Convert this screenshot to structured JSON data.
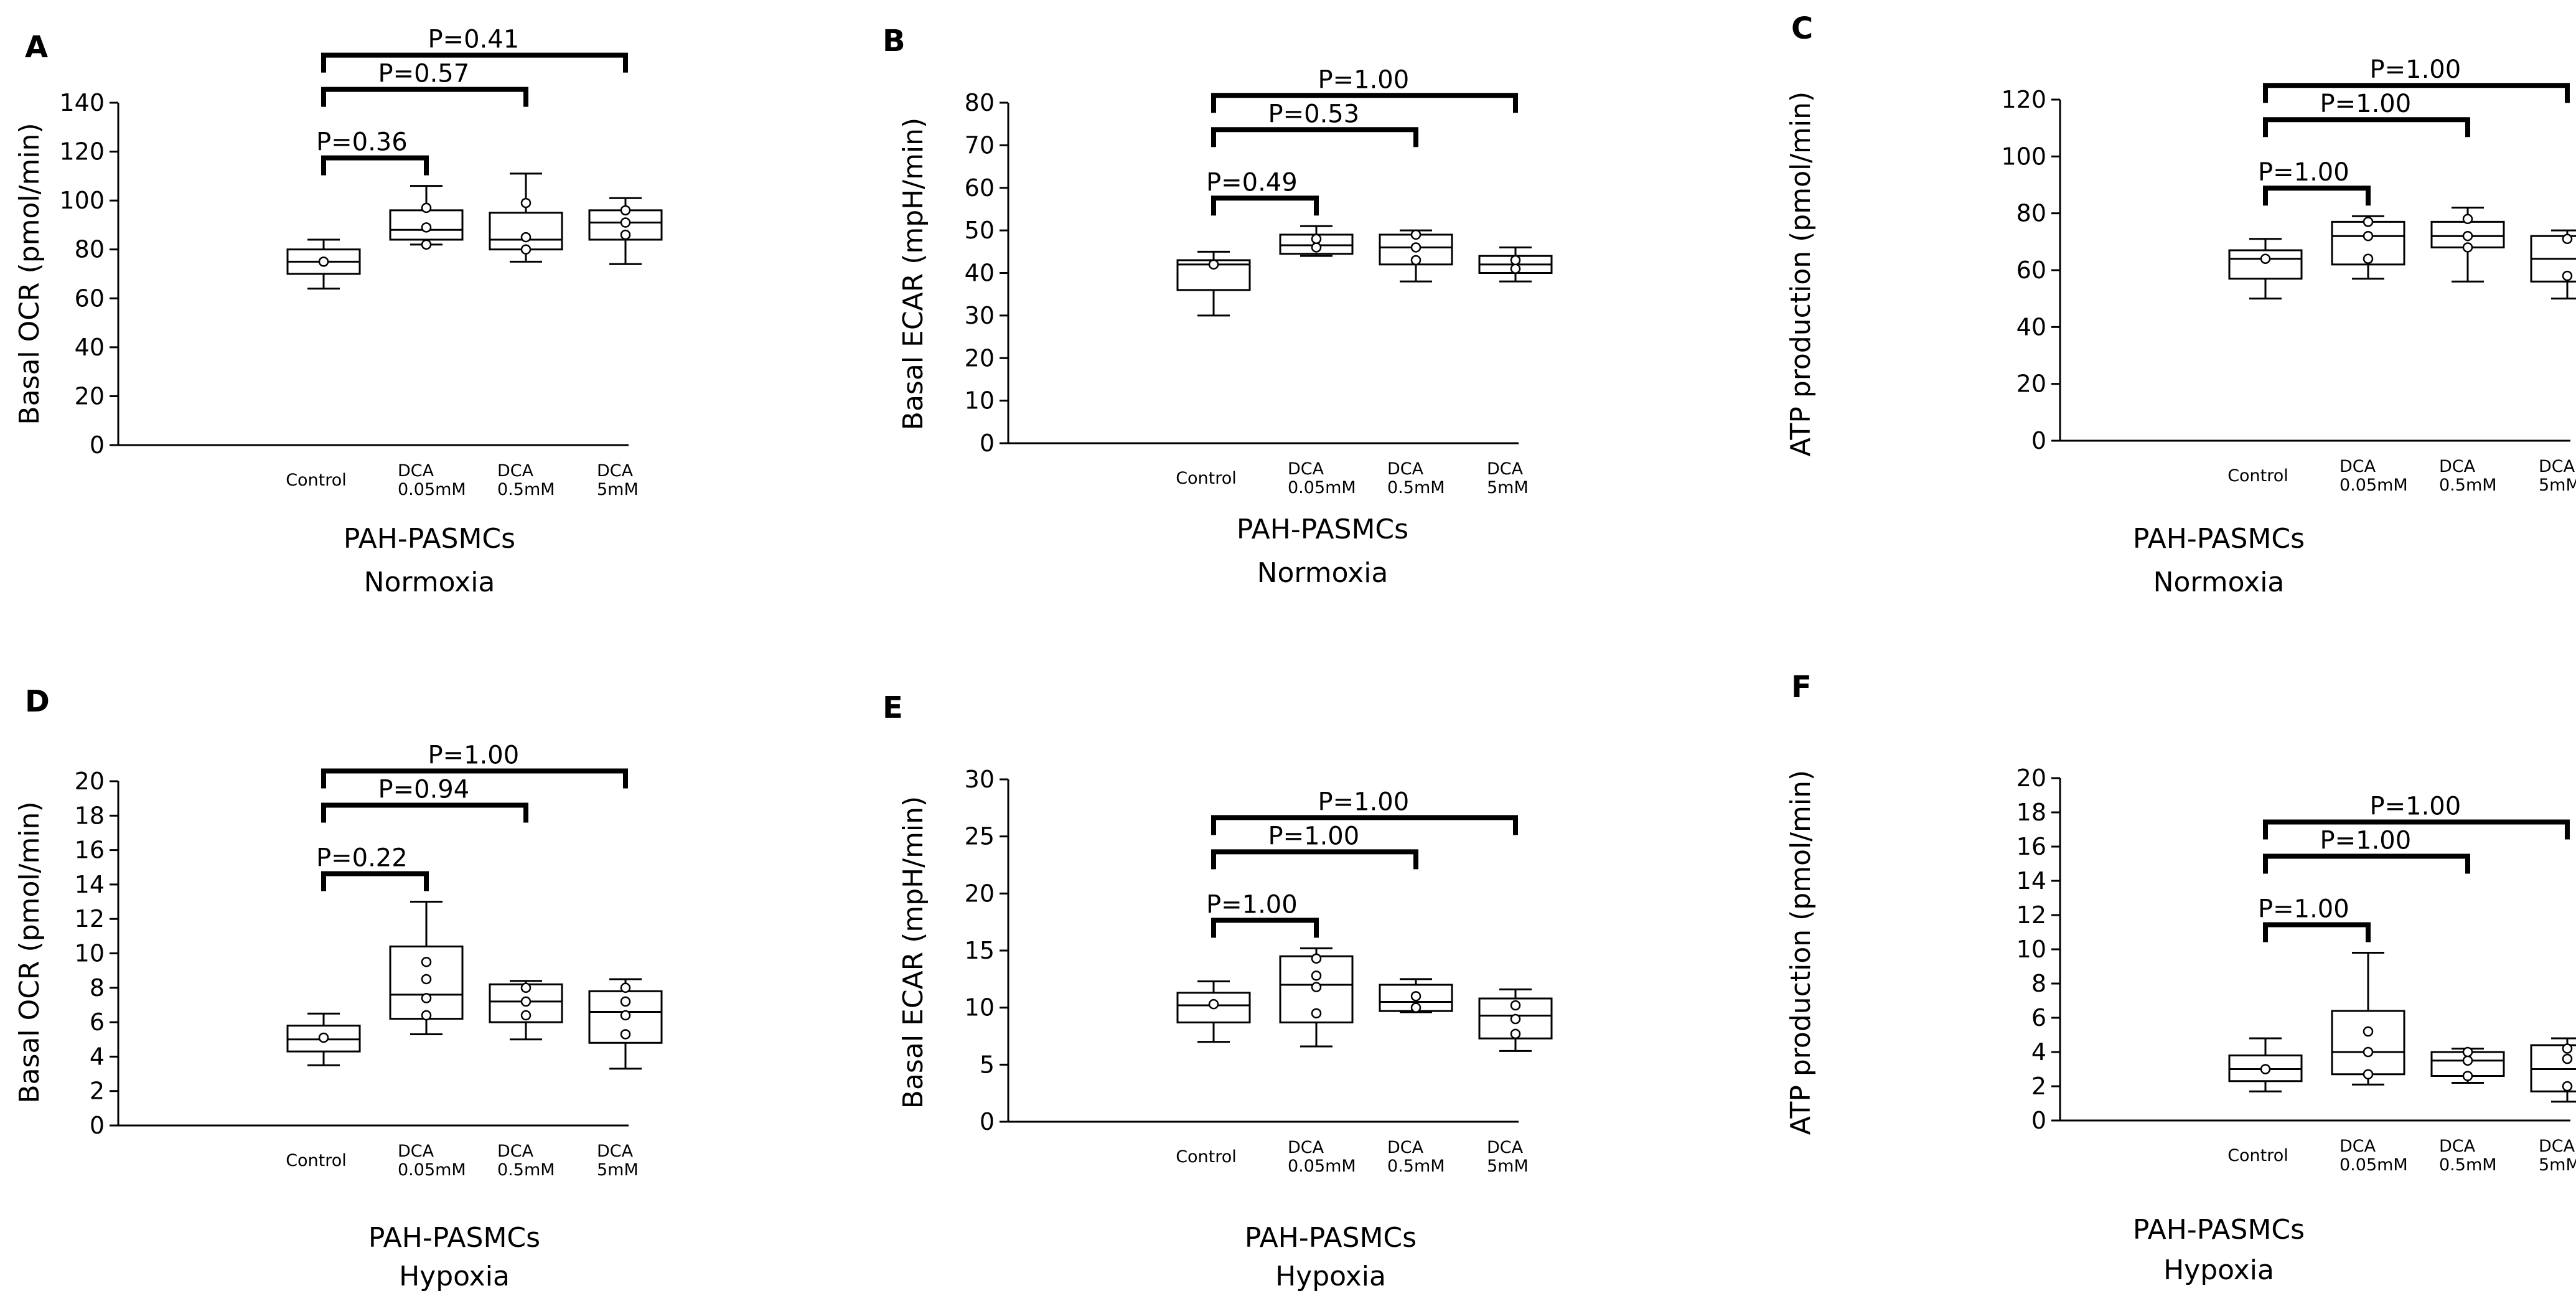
{
  "figure": {
    "categories": [
      [
        "Control"
      ],
      [
        "DCA",
        "0.05mM"
      ],
      [
        "DCA",
        "0.5mM"
      ],
      [
        "DCA",
        "5mM"
      ]
    ]
  },
  "chart_data": [
    {
      "type": "box",
      "panel": "A",
      "ylabel": "Basal OCR (pmol/min)",
      "ylim": [
        0,
        140
      ],
      "ytick_step": 20,
      "caption": [
        "PAH-PASMCs",
        "Normoxia"
      ],
      "boxes": [
        {
          "min": 64,
          "q1": 70,
          "median": 75,
          "q3": 80,
          "max": 84,
          "points": [
            75
          ]
        },
        {
          "min": 82,
          "q1": 84,
          "median": 88,
          "q3": 96,
          "max": 106,
          "points": [
            82,
            89,
            97
          ]
        },
        {
          "min": 75,
          "q1": 80,
          "median": 84,
          "q3": 95,
          "max": 111,
          "points": [
            80,
            85,
            99
          ]
        },
        {
          "min": 74,
          "q1": 84,
          "median": 91,
          "q3": 96,
          "max": 101,
          "points": [
            86,
            91,
            96
          ]
        }
      ],
      "comparisons": [
        {
          "label": "P=0.36",
          "to": 1
        },
        {
          "label": "P=0.57",
          "to": 2
        },
        {
          "label": "P=0.41",
          "to": 3
        }
      ]
    },
    {
      "type": "box",
      "panel": "B",
      "ylabel": "Basal ECAR (mpH/min)",
      "ylim": [
        0,
        80
      ],
      "ytick_step": 10,
      "caption": [
        "PAH-PASMCs",
        "Normoxia"
      ],
      "boxes": [
        {
          "min": 30,
          "q1": 36,
          "median": 42,
          "q3": 43,
          "max": 45,
          "points": [
            42
          ]
        },
        {
          "min": 44,
          "q1": 44.5,
          "median": 46.5,
          "q3": 49,
          "max": 51,
          "points": [
            46,
            48
          ]
        },
        {
          "min": 38,
          "q1": 42,
          "median": 46,
          "q3": 49,
          "max": 50,
          "points": [
            43,
            46,
            49
          ]
        },
        {
          "min": 38,
          "q1": 40,
          "median": 42,
          "q3": 44,
          "max": 46,
          "points": [
            41,
            43
          ]
        }
      ],
      "comparisons": [
        {
          "label": "P=0.49",
          "to": 1
        },
        {
          "label": "P=0.53",
          "to": 2
        },
        {
          "label": "P=1.00",
          "to": 3
        }
      ]
    },
    {
      "type": "box",
      "panel": "C",
      "ylabel": "ATP production (pmol/min)",
      "ylim": [
        0,
        120
      ],
      "ytick_step": 20,
      "caption": [
        "PAH-PASMCs",
        "Normoxia"
      ],
      "boxes": [
        {
          "min": 50,
          "q1": 57,
          "median": 64,
          "q3": 67,
          "max": 71,
          "points": [
            64
          ]
        },
        {
          "min": 57,
          "q1": 62,
          "median": 72,
          "q3": 77,
          "max": 79,
          "points": [
            64,
            72,
            77
          ]
        },
        {
          "min": 56,
          "q1": 68,
          "median": 72,
          "q3": 77,
          "max": 82,
          "points": [
            68,
            72,
            78
          ]
        },
        {
          "min": 50,
          "q1": 56,
          "median": 64,
          "q3": 72,
          "max": 74,
          "points": [
            58,
            71
          ]
        }
      ],
      "comparisons": [
        {
          "label": "P=1.00",
          "to": 1
        },
        {
          "label": "P=1.00",
          "to": 2
        },
        {
          "label": "P=1.00",
          "to": 3
        }
      ]
    },
    {
      "type": "box",
      "panel": "D",
      "ylabel": "Basal OCR (pmol/min)",
      "ylim": [
        0,
        20
      ],
      "ytick_step": 2,
      "caption": [
        "PAH-PASMCs",
        "Hypoxia"
      ],
      "boxes": [
        {
          "min": 3.5,
          "q1": 4.3,
          "median": 5,
          "q3": 5.8,
          "max": 6.5,
          "points": [
            5.1
          ]
        },
        {
          "min": 5.3,
          "q1": 6.2,
          "median": 7.6,
          "q3": 10.4,
          "max": 13,
          "points": [
            6.4,
            7.4,
            8.5,
            9.5
          ]
        },
        {
          "min": 5,
          "q1": 6,
          "median": 7.2,
          "q3": 8.2,
          "max": 8.4,
          "points": [
            6.4,
            7.2,
            8
          ]
        },
        {
          "min": 3.3,
          "q1": 4.8,
          "median": 6.6,
          "q3": 7.8,
          "max": 8.5,
          "points": [
            5.3,
            6.4,
            7.2,
            8
          ]
        }
      ],
      "comparisons": [
        {
          "label": "P=0.22",
          "to": 1
        },
        {
          "label": "P=0.94",
          "to": 2
        },
        {
          "label": "P=1.00",
          "to": 3
        }
      ]
    },
    {
      "type": "box",
      "panel": "E",
      "ylabel": "Basal ECAR (mpH/min)",
      "ylim": [
        0,
        30
      ],
      "ytick_step": 5,
      "caption": [
        "PAH-PASMCs",
        "Hypoxia"
      ],
      "boxes": [
        {
          "min": 7,
          "q1": 8.7,
          "median": 10.2,
          "q3": 11.3,
          "max": 12.3,
          "points": [
            10.3
          ]
        },
        {
          "min": 6.6,
          "q1": 8.7,
          "median": 12,
          "q3": 14.5,
          "max": 15.2,
          "points": [
            9.5,
            11.8,
            12.8,
            14.3
          ]
        },
        {
          "min": 9.6,
          "q1": 9.7,
          "median": 10.5,
          "q3": 12,
          "max": 12.5,
          "points": [
            10,
            11
          ]
        },
        {
          "min": 6.2,
          "q1": 7.3,
          "median": 9.3,
          "q3": 10.8,
          "max": 11.6,
          "points": [
            7.7,
            9,
            10.2
          ]
        }
      ],
      "comparisons": [
        {
          "label": "P=1.00",
          "to": 1
        },
        {
          "label": "P=1.00",
          "to": 2
        },
        {
          "label": "P=1.00",
          "to": 3
        }
      ]
    },
    {
      "type": "box",
      "panel": "F",
      "ylabel": "ATP production (pmol/min)",
      "ylim": [
        0,
        20
      ],
      "ytick_step": 2,
      "caption": [
        "PAH-PASMCs",
        "Hypoxia"
      ],
      "boxes": [
        {
          "min": 1.7,
          "q1": 2.3,
          "median": 3,
          "q3": 3.8,
          "max": 4.8,
          "points": [
            3
          ]
        },
        {
          "min": 2.1,
          "q1": 2.7,
          "median": 4,
          "q3": 6.4,
          "max": 9.8,
          "points": [
            2.7,
            4,
            5.2
          ]
        },
        {
          "min": 2.2,
          "q1": 2.6,
          "median": 3.5,
          "q3": 4,
          "max": 4.2,
          "points": [
            2.6,
            3.5,
            4
          ]
        },
        {
          "min": 1.1,
          "q1": 1.7,
          "median": 3,
          "q3": 4.4,
          "max": 4.8,
          "points": [
            2,
            3.6,
            4.2
          ]
        }
      ],
      "comparisons": [
        {
          "label": "P=1.00",
          "to": 1
        },
        {
          "label": "P=1.00",
          "to": 2
        },
        {
          "label": "P=1.00",
          "to": 3
        }
      ]
    }
  ]
}
